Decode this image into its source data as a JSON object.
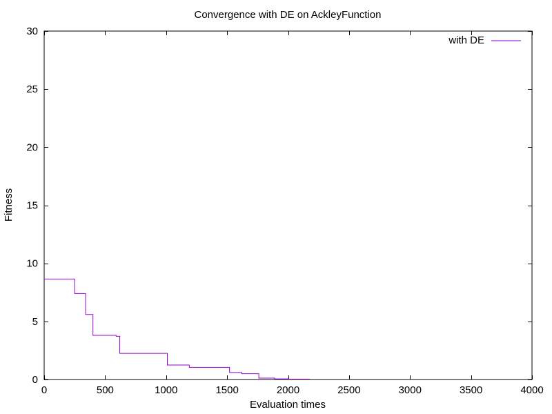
{
  "chart_data": {
    "type": "line",
    "title": "Convergence with DE on AckleyFunction",
    "xlabel": "Evaluation times",
    "ylabel": "Fitness",
    "xlim": [
      0,
      4000
    ],
    "ylim": [
      0,
      30
    ],
    "x_ticks": [
      0,
      500,
      1000,
      1500,
      2000,
      2500,
      3000,
      3500,
      4000
    ],
    "y_ticks": [
      0,
      5,
      10,
      15,
      20,
      25,
      30
    ],
    "x_tick_labels": [
      "0",
      "500",
      "1000",
      "1500",
      "2000",
      "2500",
      "3000",
      "3500",
      "4000"
    ],
    "y_tick_labels": [
      "0",
      "5",
      "10",
      "15",
      "20",
      "25",
      "30"
    ],
    "grid": false,
    "legend_position": "top-right",
    "series": [
      {
        "name": "with DE",
        "color": "#9400d3",
        "step": true,
        "x": [
          0,
          250,
          340,
          400,
          590,
          620,
          1010,
          1190,
          1520,
          1620,
          1760,
          1890,
          2000,
          2180
        ],
        "y": [
          8.65,
          7.4,
          5.6,
          3.8,
          3.72,
          2.25,
          1.25,
          1.05,
          0.6,
          0.5,
          0.12,
          0.05,
          0.03,
          0.03
        ]
      }
    ]
  }
}
